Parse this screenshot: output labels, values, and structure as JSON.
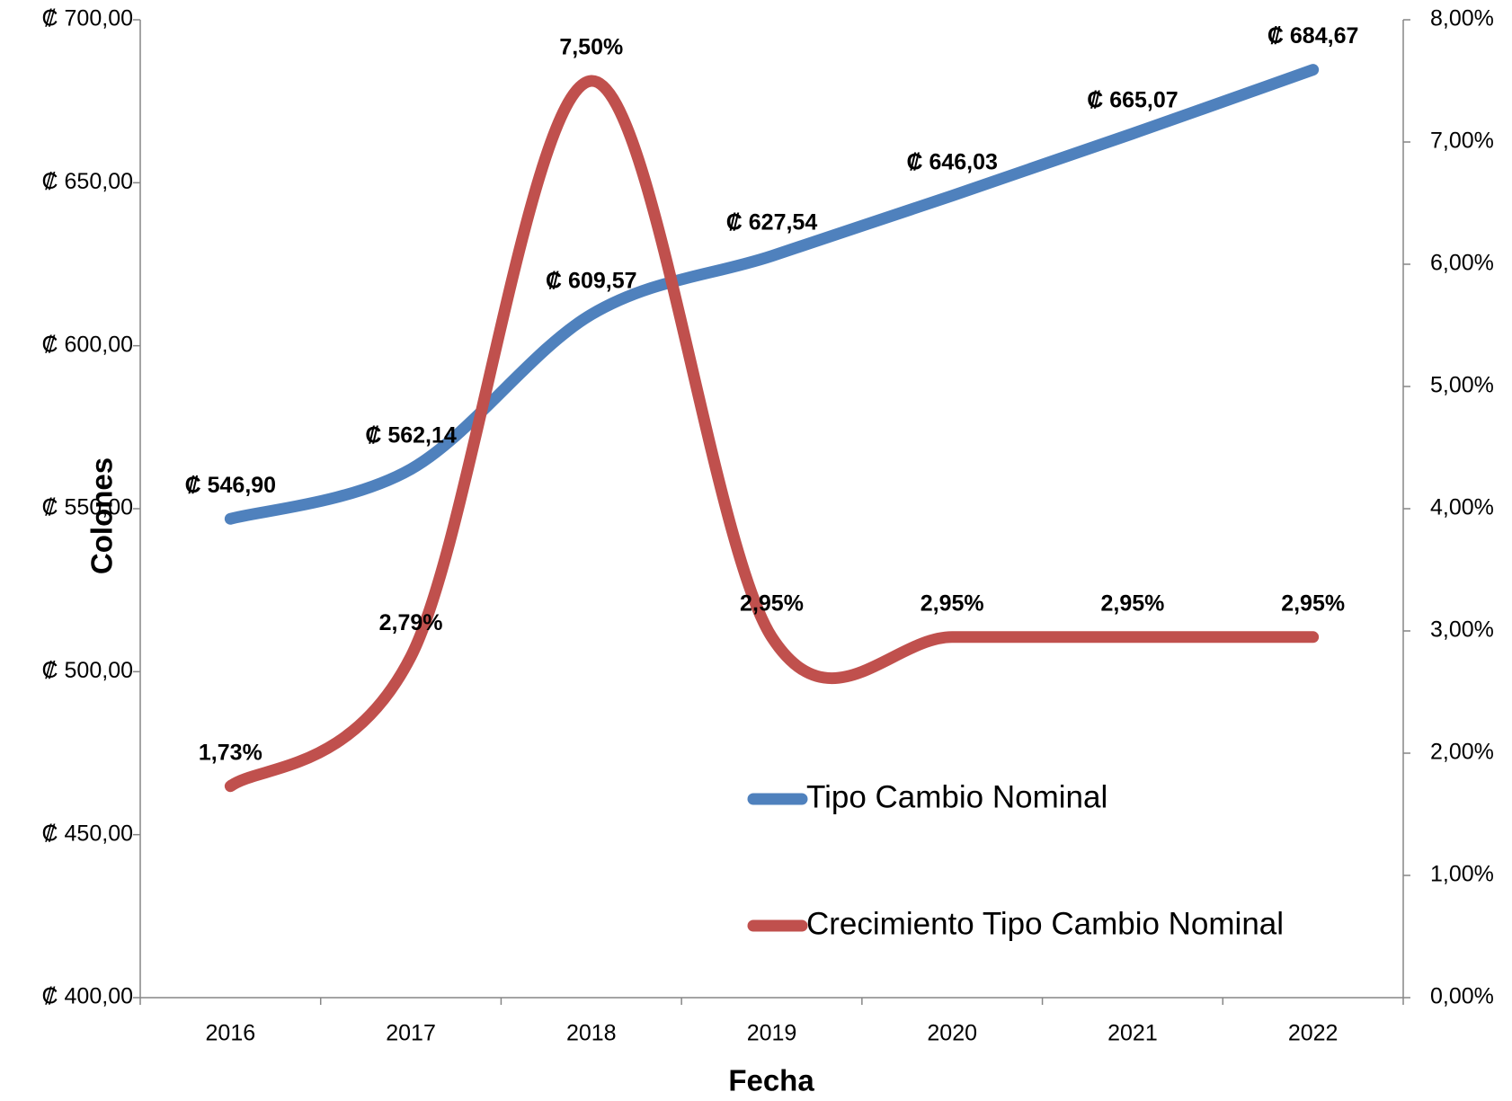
{
  "chart_data": {
    "type": "line",
    "y_label": "Colones",
    "x_label": "Fecha",
    "categories": [
      "2016",
      "2017",
      "2018",
      "2019",
      "2020",
      "2021",
      "2022"
    ],
    "series": [
      {
        "name": "Tipo Cambio Nominal",
        "color": "#4f81bd",
        "axis": "y",
        "values": [
          546.9,
          562.14,
          609.57,
          627.54,
          646.03,
          665.07,
          684.67
        ],
        "value_labels": [
          "₡ 546,90",
          "₡ 562,14",
          "₡ 609,57",
          "₡ 627,54",
          "₡ 646,03",
          "₡ 665,07",
          "₡ 684,67"
        ]
      },
      {
        "name": "Crecimiento Tipo Cambio Nominal",
        "color": "#c0504d",
        "axis": "y2",
        "values": [
          1.73,
          2.79,
          7.5,
          2.95,
          2.95,
          2.95,
          2.95
        ],
        "value_labels": [
          "1,73%",
          "2,79%",
          "7,50%",
          "2,95%",
          "2,95%",
          "2,95%",
          "2,95%"
        ]
      }
    ],
    "ylim": [
      400,
      700
    ],
    "yticks": [
      {
        "value": 400,
        "label": "₡ 400,00"
      },
      {
        "value": 450,
        "label": "₡ 450,00"
      },
      {
        "value": 500,
        "label": "₡ 500,00"
      },
      {
        "value": 550,
        "label": "₡ 550,00"
      },
      {
        "value": 600,
        "label": "₡ 600,00"
      },
      {
        "value": 650,
        "label": "₡ 650,00"
      },
      {
        "value": 700,
        "label": "₡ 700,00"
      }
    ],
    "y2lim": [
      0,
      8
    ],
    "y2ticks": [
      {
        "value": 0,
        "label": "0,00%"
      },
      {
        "value": 1,
        "label": "1,00%"
      },
      {
        "value": 2,
        "label": "2,00%"
      },
      {
        "value": 3,
        "label": "3,00%"
      },
      {
        "value": 4,
        "label": "4,00%"
      },
      {
        "value": 5,
        "label": "5,00%"
      },
      {
        "value": 6,
        "label": "6,00%"
      },
      {
        "value": 7,
        "label": "7,00%"
      },
      {
        "value": 8,
        "label": "8,00%"
      }
    ],
    "smooth": true,
    "grid": false,
    "legend": "bottom-right"
  }
}
